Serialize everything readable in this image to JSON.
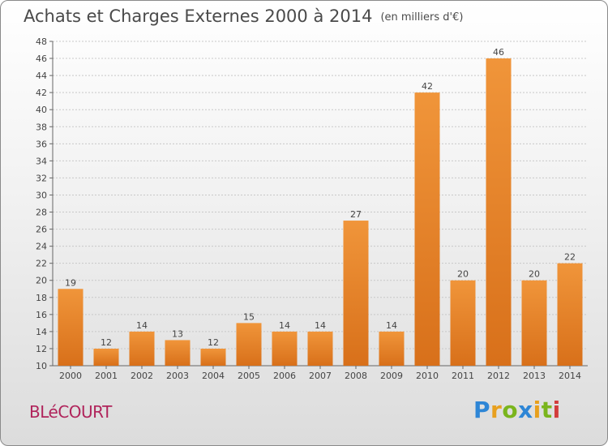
{
  "header": {
    "title": "Achats et Charges Externes 2000 à 2014",
    "unit": "(en milliers d'€)"
  },
  "commune": "BLéCOURT",
  "logo": {
    "text": "Proxiti",
    "letters": [
      {
        "char": "P",
        "color": "#2e86d6"
      },
      {
        "char": "r",
        "color": "#e8a01e"
      },
      {
        "char": "o",
        "color": "#7ab51d"
      },
      {
        "char": "x",
        "color": "#2e86d6"
      },
      {
        "char": "i",
        "color": "#e8a01e"
      },
      {
        "char": "t",
        "color": "#7ab51d"
      },
      {
        "char": "i",
        "color": "#d23c3c"
      }
    ]
  },
  "chart_data": {
    "type": "bar",
    "title": "Achats et Charges Externes 2000 à 2014",
    "subtitle": "(en milliers d'€)",
    "xlabel": "",
    "ylabel": "",
    "categories": [
      "2000",
      "2001",
      "2002",
      "2003",
      "2004",
      "2005",
      "2006",
      "2007",
      "2008",
      "2009",
      "2010",
      "2011",
      "2012",
      "2013",
      "2014"
    ],
    "values": [
      19,
      12,
      14,
      13,
      12,
      15,
      14,
      14,
      27,
      14,
      42,
      20,
      46,
      20,
      22
    ],
    "ylim": [
      10,
      48
    ],
    "yticks": [
      10,
      12,
      14,
      16,
      18,
      20,
      22,
      24,
      26,
      28,
      30,
      32,
      34,
      36,
      38,
      40,
      42,
      44,
      46,
      48
    ],
    "grid": true,
    "bar_color": "#f0953a",
    "bar_color_dark": "#d8701a"
  }
}
